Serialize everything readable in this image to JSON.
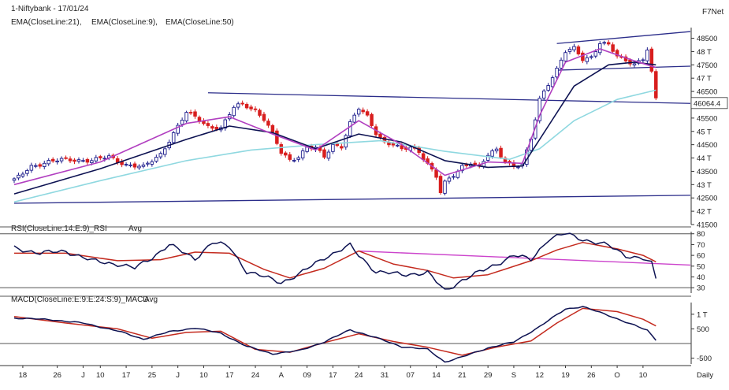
{
  "header": {
    "title": "1-Niftybank - 17/01/24",
    "brand": "F7Net",
    "ema21": "EMA(CloseLine:21),",
    "ema9": "EMA(CloseLine:9),",
    "ema50": "EMA(CloseLine:50)"
  },
  "colors": {
    "up_candle": "#1c1c8c",
    "down_candle": "#d81e1e",
    "ema21": "#0d1252",
    "ema9": "#b13fc0",
    "ema50": "#8fd8e0",
    "trendline": "#2b2d8a",
    "rsi": "#0d1252",
    "rsi_avg": "#c42a1e",
    "rsi_trend": "#cc44cc",
    "macd": "#0d1252",
    "macd_signal": "#c42a1e",
    "grid": "#555555"
  },
  "chart_data": [
    {
      "type": "candlestick",
      "panel": "price",
      "y_ticks": [
        "48500",
        "48 T",
        "47500",
        "47 T",
        "46500",
        "46 T",
        "45500",
        "45 T",
        "44500",
        "44 T",
        "43500",
        "43 T",
        "42500",
        "42 T",
        "41500"
      ],
      "ylim": [
        41500,
        48900
      ],
      "last_price_label": "46064.4",
      "last_price": 46064.4,
      "close_path": [
        [
          0,
          43150
        ],
        [
          4,
          43700
        ],
        [
          8,
          43850
        ],
        [
          12,
          43950
        ],
        [
          18,
          43900
        ],
        [
          22,
          44050
        ],
        [
          26,
          43750
        ],
        [
          30,
          43650
        ],
        [
          34,
          44150
        ],
        [
          40,
          45700
        ],
        [
          42,
          45550
        ],
        [
          45,
          45200
        ],
        [
          48,
          45100
        ],
        [
          51,
          45900
        ],
        [
          53,
          46050
        ],
        [
          56,
          45800
        ],
        [
          58,
          45450
        ],
        [
          60,
          44900
        ],
        [
          62,
          44200
        ],
        [
          64,
          43950
        ],
        [
          66,
          44050
        ],
        [
          68,
          44400
        ],
        [
          70,
          44350
        ],
        [
          72,
          44050
        ],
        [
          74,
          44500
        ],
        [
          76,
          44450
        ],
        [
          78,
          45300
        ],
        [
          80,
          45850
        ],
        [
          82,
          45550
        ],
        [
          84,
          44950
        ],
        [
          86,
          44600
        ],
        [
          88,
          44500
        ],
        [
          90,
          44300
        ],
        [
          92,
          44400
        ],
        [
          94,
          44250
        ],
        [
          96,
          43800
        ],
        [
          98,
          43300
        ],
        [
          99,
          42700
        ],
        [
          100,
          43050
        ],
        [
          102,
          43350
        ],
        [
          104,
          43700
        ],
        [
          106,
          43850
        ],
        [
          108,
          43650
        ],
        [
          110,
          44100
        ],
        [
          112,
          44300
        ],
        [
          114,
          43900
        ],
        [
          116,
          43700
        ],
        [
          118,
          43750
        ],
        [
          120,
          44700
        ],
        [
          122,
          46200
        ],
        [
          124,
          46800
        ],
        [
          126,
          47350
        ],
        [
          128,
          48000
        ],
        [
          130,
          48100
        ],
        [
          132,
          47700
        ],
        [
          134,
          47800
        ],
        [
          136,
          48350
        ],
        [
          138,
          48250
        ],
        [
          140,
          47800
        ],
        [
          142,
          47650
        ],
        [
          144,
          47550
        ],
        [
          146,
          47750
        ],
        [
          147,
          48100
        ],
        [
          148,
          47200
        ],
        [
          149,
          46200
        ]
      ],
      "ema21_path": [
        [
          0,
          42650
        ],
        [
          20,
          43600
        ],
        [
          40,
          44700
        ],
        [
          50,
          45200
        ],
        [
          60,
          44950
        ],
        [
          70,
          44350
        ],
        [
          80,
          44900
        ],
        [
          90,
          44600
        ],
        [
          100,
          43900
        ],
        [
          110,
          43650
        ],
        [
          118,
          43700
        ],
        [
          124,
          45200
        ],
        [
          130,
          46700
        ],
        [
          138,
          47500
        ],
        [
          144,
          47600
        ],
        [
          149,
          47500
        ]
      ],
      "ema9_path": [
        [
          0,
          43000
        ],
        [
          20,
          43850
        ],
        [
          40,
          45300
        ],
        [
          50,
          45550
        ],
        [
          60,
          44900
        ],
        [
          70,
          44300
        ],
        [
          80,
          45400
        ],
        [
          90,
          44500
        ],
        [
          100,
          43350
        ],
        [
          110,
          43850
        ],
        [
          118,
          43800
        ],
        [
          122,
          45600
        ],
        [
          128,
          47600
        ],
        [
          136,
          48100
        ],
        [
          144,
          47650
        ],
        [
          149,
          47400
        ]
      ],
      "ema50_path": [
        [
          0,
          42350
        ],
        [
          20,
          43150
        ],
        [
          40,
          43900
        ],
        [
          55,
          44300
        ],
        [
          70,
          44500
        ],
        [
          85,
          44650
        ],
        [
          100,
          44250
        ],
        [
          115,
          43950
        ],
        [
          122,
          44350
        ],
        [
          130,
          45400
        ],
        [
          140,
          46200
        ],
        [
          149,
          46550
        ]
      ],
      "trendlines": [
        {
          "from": [
            0,
            42300
          ],
          "to": [
            157,
            42600
          ]
        },
        {
          "from": [
            45,
            46450
          ],
          "to": [
            157,
            46050
          ]
        },
        {
          "from": [
            126,
            47300
          ],
          "to": [
            157,
            47450
          ]
        },
        {
          "from": [
            126,
            48300
          ],
          "to": [
            157,
            48750
          ]
        }
      ]
    },
    {
      "type": "line",
      "panel": "rsi",
      "title": "RSI(CloseLine:14:E:9)_RSI",
      "avg_label": "Avg",
      "y_ticks": [
        "80",
        "70",
        "60",
        "50",
        "40",
        "30"
      ],
      "ylim": [
        25,
        82
      ],
      "guides": [
        80,
        30
      ],
      "rsi_path": [
        [
          0,
          67
        ],
        [
          6,
          62
        ],
        [
          12,
          64
        ],
        [
          18,
          55
        ],
        [
          24,
          52
        ],
        [
          28,
          48
        ],
        [
          32,
          58
        ],
        [
          36,
          70
        ],
        [
          40,
          61
        ],
        [
          42,
          57
        ],
        [
          46,
          72
        ],
        [
          50,
          68
        ],
        [
          54,
          45
        ],
        [
          58,
          40
        ],
        [
          62,
          35
        ],
        [
          66,
          42
        ],
        [
          72,
          58
        ],
        [
          78,
          69
        ],
        [
          80,
          60
        ],
        [
          84,
          45
        ],
        [
          90,
          42
        ],
        [
          96,
          44
        ],
        [
          100,
          27
        ],
        [
          104,
          37
        ],
        [
          110,
          48
        ],
        [
          116,
          60
        ],
        [
          120,
          56
        ],
        [
          124,
          75
        ],
        [
          128,
          80
        ],
        [
          132,
          75
        ],
        [
          138,
          69
        ],
        [
          142,
          60
        ],
        [
          146,
          57
        ],
        [
          148,
          52
        ],
        [
          149,
          38
        ]
      ],
      "avg_path": [
        [
          0,
          62
        ],
        [
          12,
          62
        ],
        [
          24,
          55
        ],
        [
          34,
          56
        ],
        [
          42,
          63
        ],
        [
          50,
          62
        ],
        [
          58,
          47
        ],
        [
          64,
          39
        ],
        [
          72,
          48
        ],
        [
          80,
          64
        ],
        [
          88,
          52
        ],
        [
          96,
          46
        ],
        [
          102,
          39
        ],
        [
          110,
          42
        ],
        [
          120,
          55
        ],
        [
          126,
          65
        ],
        [
          132,
          72
        ],
        [
          140,
          66
        ],
        [
          146,
          60
        ],
        [
          149,
          54
        ]
      ],
      "trendline": {
        "from": [
          80,
          64
        ],
        "to": [
          157,
          51
        ]
      }
    },
    {
      "type": "line",
      "panel": "macd",
      "title": "MACD(CloseLine:E:9:E:24:S:9)_MACD",
      "avg_label": "Avg",
      "y_ticks": [
        "1 T",
        "500",
        "-500"
      ],
      "ylim": [
        -700,
        1400
      ],
      "zero_line": 0,
      "macd_path": [
        [
          0,
          870
        ],
        [
          8,
          820
        ],
        [
          16,
          700
        ],
        [
          24,
          430
        ],
        [
          30,
          150
        ],
        [
          36,
          400
        ],
        [
          42,
          530
        ],
        [
          48,
          350
        ],
        [
          54,
          -100
        ],
        [
          60,
          -350
        ],
        [
          66,
          -250
        ],
        [
          72,
          50
        ],
        [
          78,
          470
        ],
        [
          84,
          200
        ],
        [
          90,
          -110
        ],
        [
          96,
          -200
        ],
        [
          100,
          -630
        ],
        [
          104,
          -460
        ],
        [
          110,
          -150
        ],
        [
          116,
          50
        ],
        [
          122,
          580
        ],
        [
          128,
          1180
        ],
        [
          132,
          1260
        ],
        [
          138,
          960
        ],
        [
          144,
          620
        ],
        [
          147,
          450
        ],
        [
          149,
          130
        ]
      ],
      "signal_path": [
        [
          0,
          920
        ],
        [
          12,
          700
        ],
        [
          24,
          500
        ],
        [
          32,
          180
        ],
        [
          40,
          380
        ],
        [
          48,
          420
        ],
        [
          56,
          -200
        ],
        [
          64,
          -300
        ],
        [
          72,
          30
        ],
        [
          80,
          330
        ],
        [
          88,
          70
        ],
        [
          96,
          -130
        ],
        [
          104,
          -400
        ],
        [
          112,
          -120
        ],
        [
          120,
          90
        ],
        [
          126,
          700
        ],
        [
          132,
          1200
        ],
        [
          140,
          1090
        ],
        [
          146,
          830
        ],
        [
          149,
          600
        ]
      ]
    }
  ],
  "x_axis": {
    "labels": [
      {
        "i": 2,
        "text": "18"
      },
      {
        "i": 10,
        "text": "26"
      },
      {
        "i": 16,
        "text": "J"
      },
      {
        "i": 20,
        "text": "10"
      },
      {
        "i": 26,
        "text": "17"
      },
      {
        "i": 32,
        "text": "25"
      },
      {
        "i": 38,
        "text": "J"
      },
      {
        "i": 44,
        "text": "10"
      },
      {
        "i": 50,
        "text": "17"
      },
      {
        "i": 56,
        "text": "24"
      },
      {
        "i": 62,
        "text": "A"
      },
      {
        "i": 68,
        "text": "09"
      },
      {
        "i": 74,
        "text": "17"
      },
      {
        "i": 80,
        "text": "24"
      },
      {
        "i": 86,
        "text": "31"
      },
      {
        "i": 92,
        "text": "07"
      },
      {
        "i": 98,
        "text": "14"
      },
      {
        "i": 104,
        "text": "21"
      },
      {
        "i": 110,
        "text": "29"
      },
      {
        "i": 116,
        "text": "S"
      },
      {
        "i": 122,
        "text": "12"
      },
      {
        "i": 128,
        "text": "19"
      },
      {
        "i": 134,
        "text": "26"
      },
      {
        "i": 140,
        "text": "O"
      },
      {
        "i": 146,
        "text": "10"
      }
    ],
    "period": "Daily"
  }
}
